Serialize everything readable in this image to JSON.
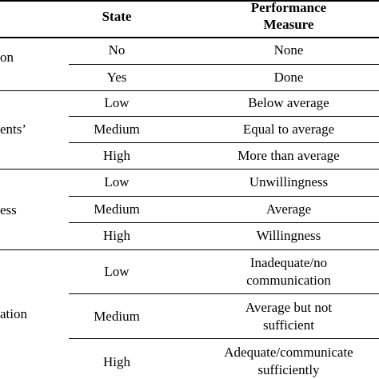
{
  "header": {
    "state": "State",
    "performance_line1": "Performance",
    "performance_line2": "Measure"
  },
  "groups": [
    {
      "variable": "on",
      "rows": [
        {
          "state": "No",
          "measure": [
            "None"
          ]
        },
        {
          "state": "Yes",
          "measure": [
            "Done"
          ]
        }
      ]
    },
    {
      "variable": "ents’",
      "rows": [
        {
          "state": "Low",
          "measure": [
            "Below average"
          ]
        },
        {
          "state": "Medium",
          "measure": [
            "Equal to average"
          ]
        },
        {
          "state": "High",
          "measure": [
            "More than average"
          ]
        }
      ]
    },
    {
      "variable": "ess",
      "rows": [
        {
          "state": "Low",
          "measure": [
            "Unwillingness"
          ]
        },
        {
          "state": "Medium",
          "measure": [
            "Average"
          ]
        },
        {
          "state": "High",
          "measure": [
            "Willingness"
          ]
        }
      ]
    },
    {
      "variable": "ation",
      "rows": [
        {
          "state": "Low",
          "measure": [
            "Inadequate/no",
            "communication"
          ]
        },
        {
          "state": "Medium",
          "measure": [
            "Average but not",
            "sufficient"
          ]
        },
        {
          "state": "High",
          "measure": [
            "Adequate/communicate",
            "sufficiently"
          ]
        }
      ]
    }
  ]
}
